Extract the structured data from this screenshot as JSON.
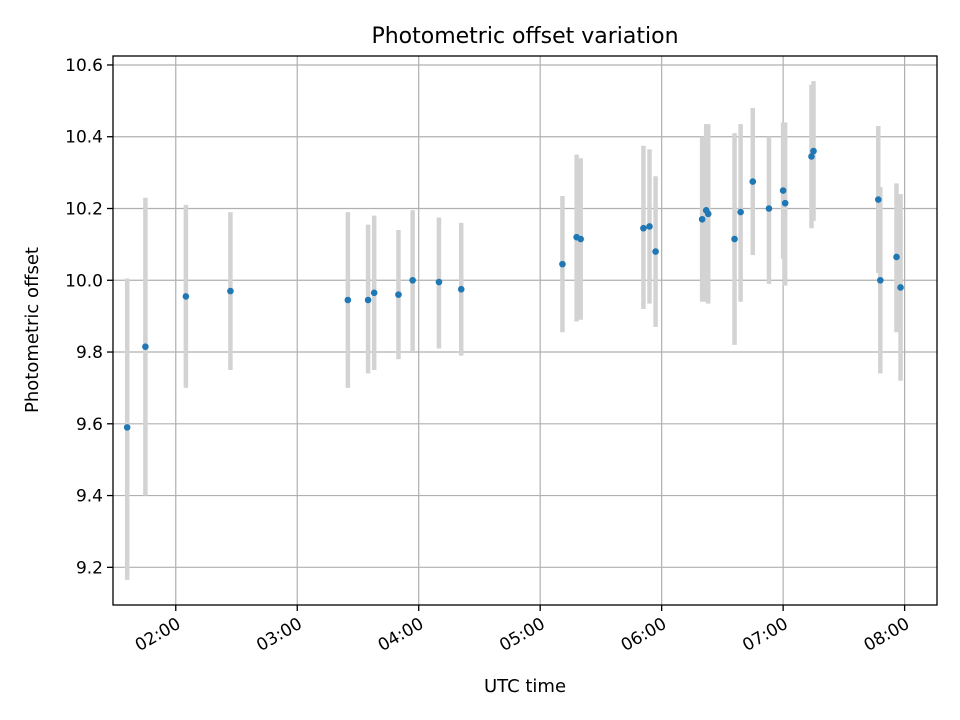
{
  "chart_data": {
    "type": "scatter",
    "title": "Photometric offset variation",
    "xlabel": "UTC time",
    "ylabel": "Photometric offset",
    "x_ticks": [
      "02:00",
      "03:00",
      "04:00",
      "05:00",
      "06:00",
      "07:00",
      "08:00"
    ],
    "y_ticks": [
      "9.2",
      "9.4",
      "9.6",
      "9.8",
      "10.0",
      "10.2",
      "10.4",
      "10.6"
    ],
    "xlim": [
      "01:29",
      "08:16"
    ],
    "ylim": [
      9.095,
      10.625
    ],
    "grid": true,
    "colors": {
      "point": "#1f77b4",
      "errorbar": "#d3d3d3"
    },
    "series": [
      {
        "x": [
          "01:36",
          "01:45",
          "02:05",
          "02:27",
          "03:25",
          "03:35",
          "03:38",
          "03:50",
          "03:57",
          "04:10",
          "04:21",
          "05:11",
          "05:18",
          "05:20",
          "05:51",
          "05:54",
          "05:57",
          "06:20",
          "06:22",
          "06:23",
          "06:36",
          "06:39",
          "06:45",
          "06:53",
          "07:00",
          "07:01",
          "07:14",
          "07:15",
          "07:47",
          "07:48",
          "07:56",
          "07:58"
        ],
        "y": [
          9.59,
          9.815,
          9.955,
          9.97,
          9.945,
          9.945,
          9.965,
          9.96,
          10.0,
          9.995,
          9.975,
          10.045,
          10.12,
          10.115,
          10.145,
          10.15,
          10.08,
          10.17,
          10.195,
          10.185,
          10.115,
          10.19,
          10.275,
          10.2,
          10.25,
          10.215,
          10.345,
          10.36,
          10.225,
          10.0,
          10.065,
          9.98
        ],
        "yerr_low": [
          9.165,
          9.4,
          9.7,
          9.75,
          9.7,
          9.74,
          9.75,
          9.78,
          9.8,
          9.81,
          9.79,
          9.855,
          9.885,
          9.89,
          9.92,
          9.935,
          9.87,
          9.94,
          9.94,
          9.935,
          9.82,
          9.94,
          10.07,
          9.99,
          10.06,
          9.985,
          10.145,
          10.165,
          10.02,
          9.74,
          9.855,
          9.72
        ],
        "yerr_high": [
          10.005,
          10.23,
          10.21,
          10.19,
          10.19,
          10.155,
          10.18,
          10.14,
          10.195,
          10.175,
          10.16,
          10.235,
          10.35,
          10.34,
          10.375,
          10.365,
          10.29,
          10.4,
          10.435,
          10.435,
          10.41,
          10.435,
          10.48,
          10.4,
          10.44,
          10.44,
          10.545,
          10.555,
          10.43,
          10.26,
          10.27,
          10.24
        ]
      }
    ]
  }
}
